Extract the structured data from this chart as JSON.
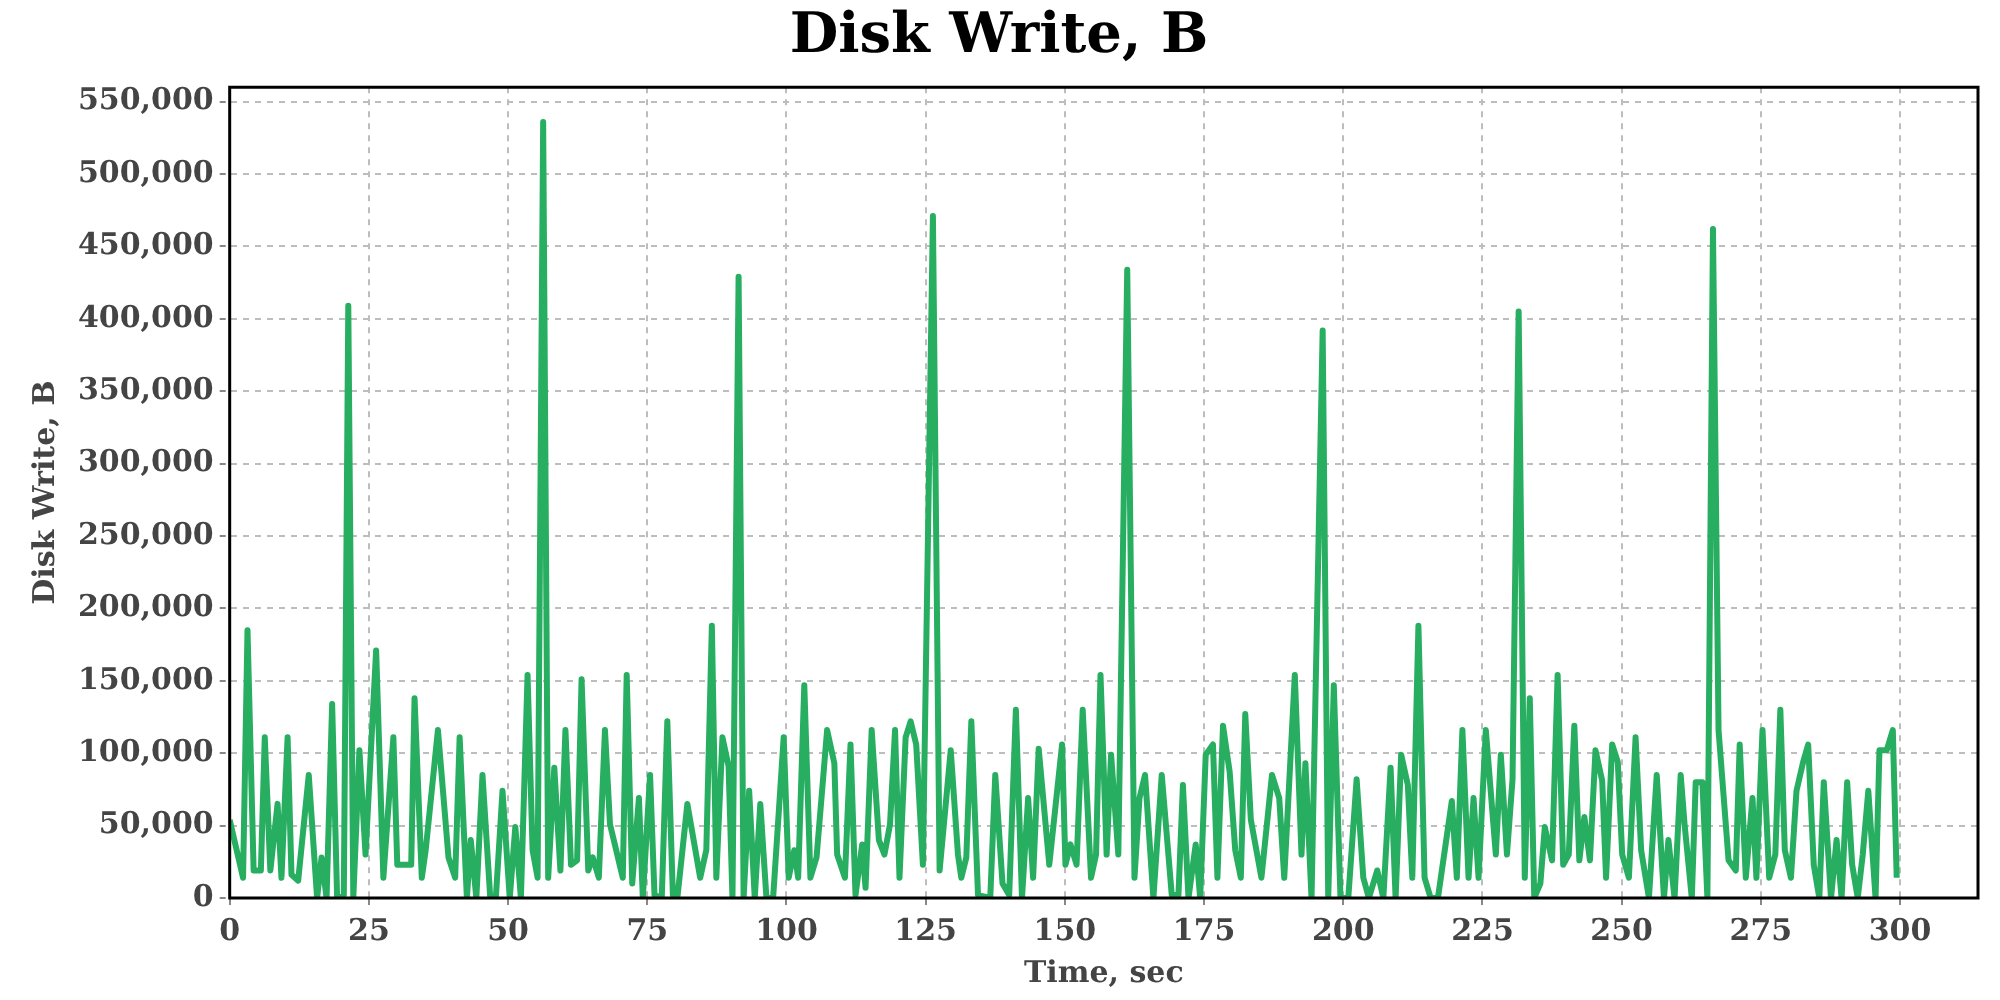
{
  "chart_data": {
    "type": "line",
    "title": "Disk Write, B",
    "xlabel": "Time, sec",
    "ylabel": "Disk Write, B",
    "xlim": [
      0,
      314
    ],
    "xticks": [
      0,
      25,
      50,
      75,
      100,
      125,
      150,
      175,
      200,
      225,
      250,
      275,
      300
    ],
    "ylim": [
      0,
      560000
    ],
    "yticks": [
      {
        "value": 0,
        "label": "0"
      },
      {
        "value": 50000,
        "label": "50,000"
      },
      {
        "value": 100000,
        "label": "100,000"
      },
      {
        "value": 150000,
        "label": "150,000"
      },
      {
        "value": 200000,
        "label": "200,000"
      },
      {
        "value": 250000,
        "label": "250,000"
      },
      {
        "value": 300000,
        "label": "300,000"
      },
      {
        "value": 350000,
        "label": "350,000"
      },
      {
        "value": 400000,
        "label": "400,000"
      },
      {
        "value": 450000,
        "label": "450,000"
      },
      {
        "value": 500000,
        "label": "500,000"
      },
      {
        "value": 550000,
        "label": "550,000"
      }
    ],
    "grid": true,
    "legend": false,
    "marker": "none",
    "line_style": "solid",
    "series": [
      {
        "color": "#27ae60",
        "x": [
          0,
          2.4,
          3.2,
          4.3,
          5.6,
          6.3,
          7.3,
          8.6,
          9.3,
          10.4,
          11.1,
          12.3,
          14.2,
          15.7,
          16.5,
          17.4,
          18.4,
          19.3,
          20.5,
          21.3,
          22.2,
          23.3,
          24.4,
          26.3,
          27.6,
          29.4,
          30.1,
          32.6,
          33.2,
          34.5,
          35.2,
          37.4,
          39.3,
          40.5,
          41.3,
          42.6,
          43.3,
          44.3,
          45.4,
          46.8,
          47.8,
          49,
          50.3,
          51.3,
          52.3,
          53.5,
          54.4,
          55.3,
          56.3,
          57.2,
          58.3,
          59.4,
          60.3,
          61.3,
          62.4,
          63.2,
          64.4,
          65.2,
          66.3,
          67.4,
          68.3,
          70.6,
          71.3,
          72.3,
          73.5,
          74.2,
          75.5,
          76.3,
          77.6,
          78.6,
          79.6,
          80.4,
          82.2,
          84.5,
          85.6,
          86.6,
          87.4,
          88.5,
          89.6,
          90.3,
          91.4,
          92.3,
          93.3,
          94.3,
          95.3,
          96.4,
          97.6,
          99.5,
          100.4,
          101.4,
          102.1,
          103.2,
          104.3,
          105.4,
          107.3,
          108.6,
          109.1,
          110.5,
          111.5,
          112.4,
          113.6,
          114.2,
          115.3,
          116.6,
          117.6,
          118.6,
          119.5,
          120.3,
          121.4,
          122.3,
          123.3,
          124.5,
          126.3,
          127.5,
          129.5,
          130.8,
          131.4,
          132.3,
          133.2,
          134.4,
          136.6,
          137.5,
          138.8,
          140,
          141.2,
          142.3,
          143.4,
          144.3,
          145.3,
          147.2,
          149.5,
          150.1,
          151,
          152.1,
          153.2,
          154.7,
          155.6,
          156.4,
          157.5,
          158.3,
          159.6,
          161.2,
          162.5,
          163.4,
          164.4,
          165.9,
          167.4,
          169.2,
          170.4,
          171.2,
          172.2,
          173.5,
          174.3,
          175.3,
          176.6,
          177.4,
          178.4,
          179.6,
          180.6,
          181.6,
          182.4,
          183.4,
          185.3,
          187.2,
          188.5,
          189.4,
          191.3,
          192.5,
          193.2,
          194.3,
          196.3,
          197.3,
          198.3,
          199.5,
          200.9,
          202.4,
          203.6,
          204.6,
          206.1,
          207.2,
          208.5,
          209.4,
          210.4,
          211.6,
          212.4,
          213.5,
          214.6,
          215.7,
          217,
          219.5,
          220.4,
          221.4,
          222.5,
          223.4,
          224.3,
          225.6,
          227.4,
          228.3,
          229.4,
          230.4,
          231.5,
          232.6,
          233.5,
          234.3,
          235.4,
          236.2,
          237.5,
          238.5,
          239.5,
          240.5,
          241.5,
          242.4,
          243.3,
          244.3,
          245.3,
          246.5,
          247.2,
          248.3,
          249.3,
          250.1,
          251.3,
          252.5,
          253.5,
          254.9,
          256.3,
          257.6,
          258.4,
          259.5,
          260.6,
          261.3,
          262.6,
          263.3,
          264.5,
          265.4,
          266.4,
          267.4,
          269.2,
          270.5,
          271.2,
          272.3,
          273.5,
          274.2,
          275.3,
          276.5,
          277.6,
          278.5,
          279.3,
          280.4,
          281.4,
          282.6,
          283.5,
          284.5,
          285.5,
          286.3,
          287.6,
          288.6,
          289.5,
          290.5,
          291.4,
          292.4,
          293.3,
          294.3,
          295.6,
          296.3,
          297.6,
          298.7,
          299.4
        ],
        "values": [
          54000,
          14000,
          185000,
          19000,
          19000,
          111000,
          19000,
          65000,
          14000,
          111000,
          16000,
          12000,
          85000,
          0,
          28000,
          0,
          134000,
          0,
          2000,
          409000,
          0,
          102000,
          30000,
          171000,
          14000,
          111000,
          23000,
          23000,
          138000,
          14000,
          33000,
          116000,
          28000,
          14000,
          111000,
          0,
          40000,
          0,
          85000,
          0,
          0,
          74000,
          0,
          49000,
          0,
          154000,
          33000,
          14000,
          536000,
          14000,
          90000,
          19000,
          116000,
          23000,
          26000,
          151000,
          19000,
          28000,
          14000,
          116000,
          51000,
          14000,
          154000,
          10000,
          69000,
          0,
          85000,
          2000,
          0,
          122000,
          2000,
          0,
          65000,
          14000,
          33000,
          188000,
          14000,
          111000,
          91000,
          0,
          429000,
          0,
          74000,
          0,
          65000,
          0,
          0,
          111000,
          14000,
          33000,
          14000,
          147000,
          14000,
          28000,
          116000,
          93000,
          30000,
          14000,
          106000,
          2000,
          37000,
          7000,
          116000,
          40000,
          30000,
          51000,
          116000,
          14000,
          111000,
          122000,
          106000,
          23000,
          471000,
          19000,
          102000,
          30000,
          14000,
          28000,
          122000,
          2000,
          0,
          85000,
          10000,
          2000,
          130000,
          0,
          69000,
          14000,
          103000,
          23000,
          106000,
          23000,
          37000,
          23000,
          130000,
          14000,
          30000,
          154000,
          30000,
          99000,
          30000,
          434000,
          14000,
          69000,
          85000,
          0,
          85000,
          2000,
          2000,
          78000,
          0,
          37000,
          0,
          99000,
          106000,
          14000,
          119000,
          87000,
          33000,
          14000,
          127000,
          54000,
          14000,
          85000,
          69000,
          14000,
          154000,
          30000,
          93000,
          0,
          392000,
          0,
          147000,
          0,
          0,
          82000,
          14000,
          0,
          19000,
          0,
          90000,
          0,
          99000,
          78000,
          14000,
          188000,
          14000,
          0,
          0,
          67000,
          14000,
          116000,
          14000,
          69000,
          14000,
          116000,
          30000,
          99000,
          30000,
          82000,
          405000,
          14000,
          138000,
          0,
          10000,
          49000,
          26000,
          154000,
          23000,
          30000,
          119000,
          26000,
          56000,
          26000,
          102000,
          81000,
          14000,
          106000,
          94000,
          30000,
          14000,
          111000,
          33000,
          0,
          85000,
          0,
          40000,
          0,
          85000,
          51000,
          0,
          80000,
          80000,
          0,
          462000,
          116000,
          26000,
          19000,
          106000,
          14000,
          69000,
          14000,
          116000,
          14000,
          30000,
          130000,
          33000,
          14000,
          74000,
          94000,
          106000,
          23000,
          0,
          80000,
          0,
          40000,
          0,
          80000,
          23000,
          0,
          30000,
          74000,
          0,
          102000,
          102000,
          116000,
          14000
        ]
      }
    ]
  }
}
